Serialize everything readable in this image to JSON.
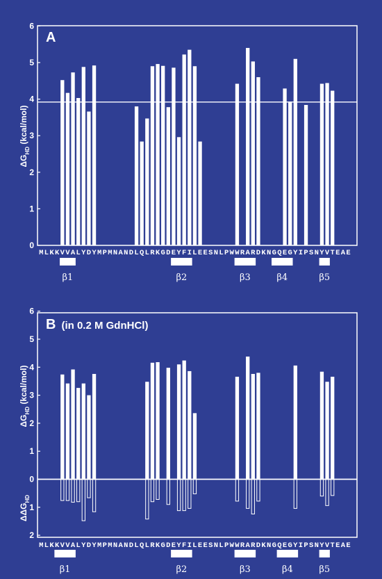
{
  "chart_data": [
    {
      "type": "bar",
      "panel_label": "A",
      "ylabel": "ΔG",
      "ylabel_sub": "HD",
      "ylabel_unit": " (kcal/mol)",
      "ylim": [
        0,
        6
      ],
      "yticks": [
        "0",
        "1",
        "2",
        "3",
        "4",
        "5",
        "6"
      ],
      "reference_line": 3.92,
      "sequence": "MLKKVVALYDYMPMNANDLQLRKGDEYFILEESNLPWWRARDKNGQEGYIPSNYVTEAE",
      "strands": [
        {
          "label": "β1",
          "start": 4,
          "end": 6
        },
        {
          "label": "β2",
          "start": 25,
          "end": 28
        },
        {
          "label": "β3",
          "start": 37,
          "end": 40
        },
        {
          "label": "β4",
          "start": 44,
          "end": 47
        },
        {
          "label": "β5",
          "start": 53,
          "end": 54
        }
      ],
      "bars": [
        {
          "index": 4,
          "value": 4.52
        },
        {
          "index": 5,
          "value": 4.17
        },
        {
          "index": 6,
          "value": 4.73
        },
        {
          "index": 7,
          "value": 4.03
        },
        {
          "index": 8,
          "value": 4.88
        },
        {
          "index": 9,
          "value": 3.66
        },
        {
          "index": 10,
          "value": 4.92
        },
        {
          "index": 18,
          "value": 3.8
        },
        {
          "index": 19,
          "value": 2.84
        },
        {
          "index": 20,
          "value": 3.47
        },
        {
          "index": 21,
          "value": 4.9
        },
        {
          "index": 22,
          "value": 4.96
        },
        {
          "index": 23,
          "value": 4.91
        },
        {
          "index": 24,
          "value": 3.78
        },
        {
          "index": 25,
          "value": 4.86
        },
        {
          "index": 26,
          "value": 2.96
        },
        {
          "index": 27,
          "value": 5.22
        },
        {
          "index": 28,
          "value": 5.35
        },
        {
          "index": 29,
          "value": 4.9
        },
        {
          "index": 30,
          "value": 2.84
        },
        {
          "index": 37,
          "value": 4.42
        },
        {
          "index": 39,
          "value": 5.4
        },
        {
          "index": 40,
          "value": 5.03
        },
        {
          "index": 41,
          "value": 4.6
        },
        {
          "index": 46,
          "value": 4.29
        },
        {
          "index": 47,
          "value": 3.93
        },
        {
          "index": 48,
          "value": 5.1
        },
        {
          "index": 50,
          "value": 3.84
        },
        {
          "index": 53,
          "value": 4.42
        },
        {
          "index": 54,
          "value": 4.44
        },
        {
          "index": 55,
          "value": 4.23
        }
      ]
    },
    {
      "type": "bar",
      "panel_label": "B",
      "panel_note": "(in 0.2 M GdnHCl)",
      "ylabel": "ΔG",
      "ylabel_sub": "HD",
      "ylabel_unit": " (kcal/mol)",
      "ylabel2": "ΔΔG",
      "ylabel2_sub": "HD",
      "ylim": [
        -2,
        6
      ],
      "yticks": [
        {
          "value": 6,
          "label": "6"
        },
        {
          "value": 5,
          "label": "5"
        },
        {
          "value": 4,
          "label": "4"
        },
        {
          "value": 3,
          "label": "3"
        },
        {
          "value": 2,
          "label": "2"
        },
        {
          "value": 1,
          "label": "1"
        },
        {
          "value": 0,
          "label": "0"
        },
        {
          "value": -1,
          "label": "1"
        },
        {
          "value": -2,
          "label": "2"
        }
      ],
      "sequence": "MLKKVVALYDYMPMNANDLQLRKGDEYFILEESNLPWWRARDKNGQEGYIPSNYVTEAE",
      "strands": [
        {
          "label": "β1",
          "start": 3,
          "end": 6
        },
        {
          "label": "β2",
          "start": 25,
          "end": 28
        },
        {
          "label": "β3",
          "start": 37,
          "end": 40
        },
        {
          "label": "β4",
          "start": 45,
          "end": 48
        },
        {
          "label": "β5",
          "start": 53,
          "end": 54
        }
      ],
      "bars": [
        {
          "index": 4,
          "value": 3.74
        },
        {
          "index": 5,
          "value": 3.42
        },
        {
          "index": 6,
          "value": 3.92
        },
        {
          "index": 7,
          "value": 3.26
        },
        {
          "index": 8,
          "value": 3.42
        },
        {
          "index": 9,
          "value": 3.0
        },
        {
          "index": 10,
          "value": 3.76
        },
        {
          "index": 20,
          "value": 3.48
        },
        {
          "index": 21,
          "value": 4.16
        },
        {
          "index": 22,
          "value": 4.18
        },
        {
          "index": 24,
          "value": 3.98
        },
        {
          "index": 26,
          "value": 4.1
        },
        {
          "index": 27,
          "value": 4.24
        },
        {
          "index": 28,
          "value": 3.86
        },
        {
          "index": 29,
          "value": 2.36
        },
        {
          "index": 37,
          "value": 3.66
        },
        {
          "index": 39,
          "value": 4.38
        },
        {
          "index": 40,
          "value": 3.76
        },
        {
          "index": 41,
          "value": 3.8
        },
        {
          "index": 48,
          "value": 4.06
        },
        {
          "index": 53,
          "value": 3.84
        },
        {
          "index": 54,
          "value": 3.48
        },
        {
          "index": 55,
          "value": 3.66
        }
      ],
      "ddg_bars": [
        {
          "index": 4,
          "value": 0.76
        },
        {
          "index": 5,
          "value": 0.76
        },
        {
          "index": 6,
          "value": 0.82
        },
        {
          "index": 7,
          "value": 0.8
        },
        {
          "index": 8,
          "value": 1.48
        },
        {
          "index": 9,
          "value": 0.66
        },
        {
          "index": 10,
          "value": 1.16
        },
        {
          "index": 20,
          "value": 1.42
        },
        {
          "index": 21,
          "value": 0.8
        },
        {
          "index": 22,
          "value": 0.72
        },
        {
          "index": 24,
          "value": 0.9
        },
        {
          "index": 26,
          "value": 1.12
        },
        {
          "index": 27,
          "value": 1.12
        },
        {
          "index": 28,
          "value": 1.04
        },
        {
          "index": 29,
          "value": 0.52
        },
        {
          "index": 37,
          "value": 0.78
        },
        {
          "index": 39,
          "value": 1.04
        },
        {
          "index": 40,
          "value": 1.24
        },
        {
          "index": 41,
          "value": 0.78
        },
        {
          "index": 48,
          "value": 1.04
        },
        {
          "index": 53,
          "value": 0.6
        },
        {
          "index": 54,
          "value": 0.94
        },
        {
          "index": 55,
          "value": 0.58
        }
      ]
    }
  ]
}
